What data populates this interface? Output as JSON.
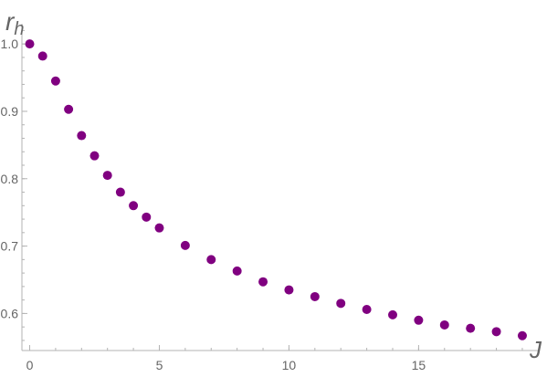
{
  "chart_data": {
    "type": "scatter",
    "xlabel": "J",
    "ylabel": "r",
    "ylabel_sub": "h",
    "xlim": [
      -0.3,
      19.6
    ],
    "ylim": [
      0.545,
      1.03
    ],
    "x_ticks": [
      0,
      5,
      10,
      15
    ],
    "x_minor_step": 1,
    "y_ticks": [
      0.6,
      0.7,
      0.8,
      0.9,
      1.0
    ],
    "y_minor_step": 0.02,
    "x_tick_labels": [
      "0",
      "5",
      "10",
      "15"
    ],
    "y_tick_labels": [
      "0.6",
      "0.7",
      "0.8",
      "0.9",
      "1.0"
    ],
    "marker_color": "#800080",
    "grid": false,
    "series": [
      {
        "x": [
          0,
          0.5,
          1,
          1.5,
          2,
          2.5,
          3,
          3.5,
          4,
          4.5,
          5,
          6,
          7,
          8,
          9,
          10,
          11,
          12,
          13,
          14,
          15,
          16,
          17,
          18,
          19
        ],
        "y": [
          1.0,
          0.982,
          0.945,
          0.903,
          0.864,
          0.834,
          0.805,
          0.78,
          0.76,
          0.743,
          0.727,
          0.701,
          0.68,
          0.663,
          0.647,
          0.635,
          0.625,
          0.615,
          0.606,
          0.598,
          0.59,
          0.583,
          0.578,
          0.573,
          0.567
        ]
      }
    ]
  }
}
